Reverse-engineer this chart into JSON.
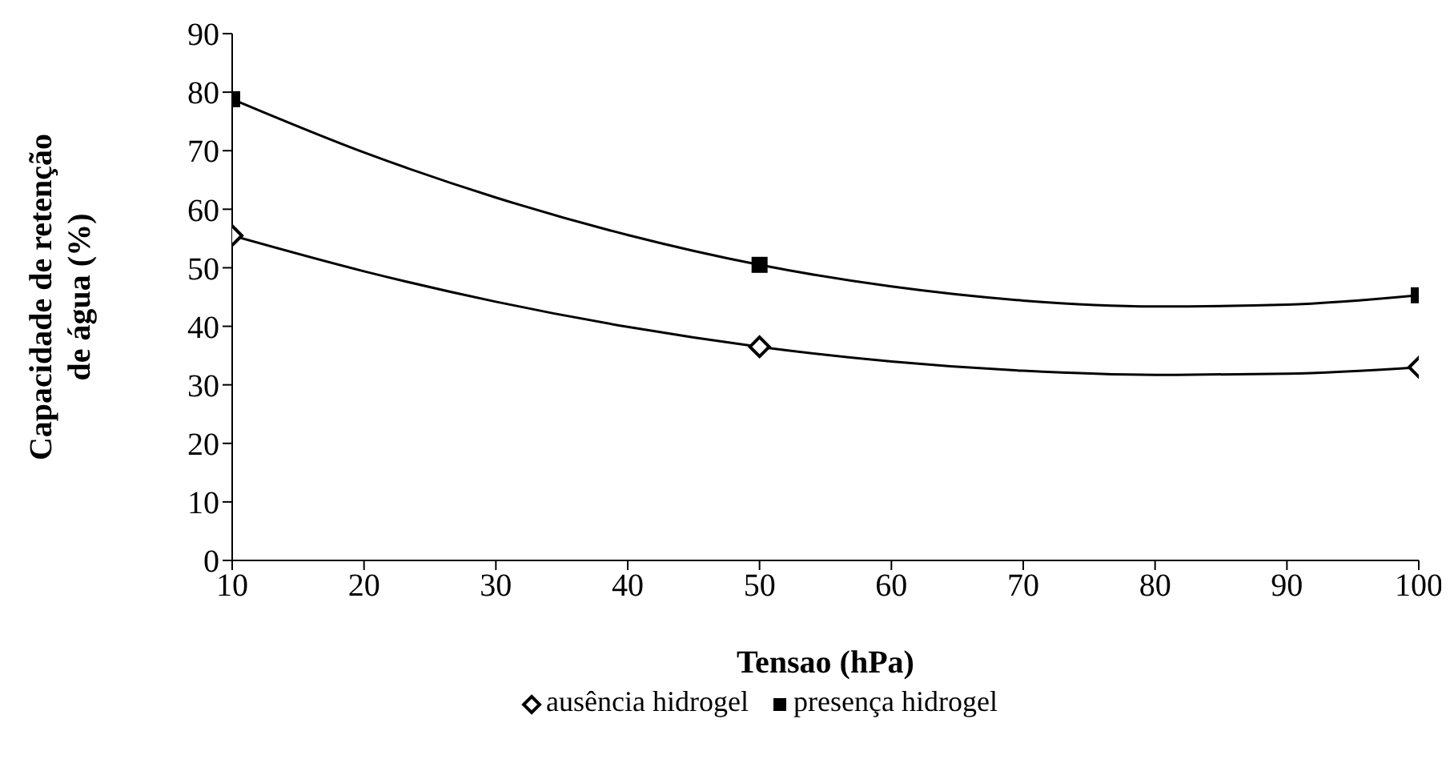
{
  "chart_data": {
    "type": "scatter",
    "xlabel": "Tensao (hPa)",
    "ylabel": "Capacidade de retenção de água (%)",
    "xlim": [
      10,
      100
    ],
    "xticks": [
      10,
      20,
      30,
      40,
      50,
      60,
      70,
      80,
      90,
      100
    ],
    "ylim": [
      0,
      90
    ],
    "yticks": [
      0,
      10,
      20,
      30,
      40,
      50,
      60,
      70,
      80,
      90
    ],
    "legend": "bottom",
    "grid": false,
    "series": [
      {
        "name": "ausência hidrogel",
        "marker": "diamond",
        "color": "#000000",
        "x": [
          10,
          50,
          100
        ],
        "values": [
          55.5,
          36.5,
          33
        ]
      },
      {
        "name": "presença hidrogel",
        "marker": "square",
        "color": "#000000",
        "x": [
          10,
          50,
          100
        ],
        "values": [
          78.8,
          50.5,
          45.3
        ]
      },
      {
        "type": "line",
        "marker": "none",
        "color": "#000000",
        "x": [
          10,
          20,
          30,
          40,
          50,
          60,
          70,
          80,
          90,
          100
        ],
        "values": [
          55.5,
          49.4,
          44.2,
          39.9,
          36.5,
          34.0,
          32.4,
          31.7,
          31.9,
          33
        ]
      },
      {
        "type": "line",
        "marker": "none",
        "color": "#000000",
        "x": [
          10,
          20,
          30,
          40,
          50,
          60,
          70,
          80,
          90,
          100
        ],
        "values": [
          78.8,
          69.7,
          62.0,
          55.6,
          50.5,
          46.8,
          44.4,
          43.4,
          43.7,
          45.3
        ]
      }
    ]
  }
}
